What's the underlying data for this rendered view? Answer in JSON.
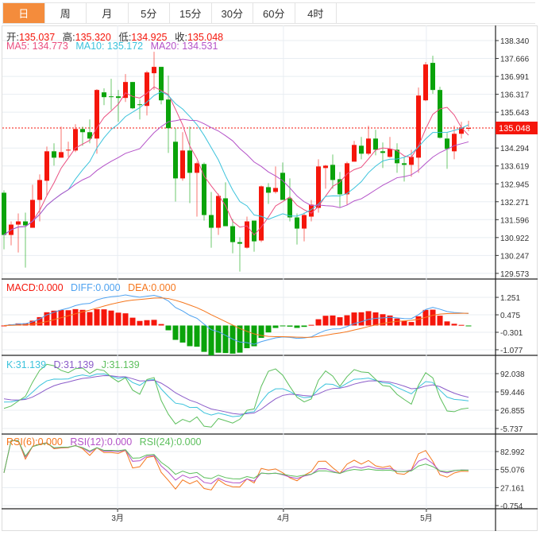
{
  "tabs": [
    "日",
    "周",
    "月",
    "5分",
    "15分",
    "30分",
    "60分",
    "4时"
  ],
  "active_tab": 0,
  "ohlc_legend": {
    "open_label": "开:",
    "open": "135.037",
    "high_label": "高:",
    "high": "135.320",
    "low_label": "低:",
    "low": "134.925",
    "close_label": "收:",
    "close": "135.048"
  },
  "ma_legend": {
    "ma5": "MA5: 134.773",
    "ma10": "MA10: 135.172",
    "ma20": "MA20: 134.531"
  },
  "macd_legend": {
    "macd": "MACD:0.000",
    "diff": "DIFF:0.000",
    "dea": "DEA:0.000"
  },
  "kdj_legend": {
    "k": "K:31.139",
    "d": "D:31.139",
    "j": "J:31.139"
  },
  "rsi_legend": {
    "rsi6": "RSI(6):0.000",
    "rsi12": "RSI(12):0.000",
    "rsi24": "RSI(24):0.000"
  },
  "colors": {
    "up": "#f5160b",
    "down": "#0aa30a",
    "ma5": "#ea4f80",
    "ma10": "#3cc3dc",
    "ma20": "#b452c8",
    "dif": "#4ea2f0",
    "dea": "#f5761c",
    "k": "#3cc3dc",
    "d": "#8b5cc9",
    "j": "#5cbf5c",
    "rsi6": "#f5761c",
    "rsi12": "#b452c8",
    "rsi24": "#5cbf5c",
    "accent": "#f48c3c"
  },
  "chart_data": {
    "type": "candlestick",
    "last_price": "135.048",
    "price_axis": {
      "ticks": [
        "138.340",
        "137.666",
        "136.991",
        "136.317",
        "135.643",
        "134.294",
        "133.619",
        "132.945",
        "132.271",
        "131.596",
        "130.922",
        "130.247",
        "129.573"
      ],
      "range": [
        129.39,
        138.91
      ]
    },
    "macd_axis": {
      "ticks": [
        "1.251",
        "0.475",
        "-0.301",
        "-1.077"
      ],
      "range": [
        -1.29,
        2.03
      ]
    },
    "kdj_axis": {
      "ticks": [
        "92.038",
        "59.446",
        "26.855",
        "-5.737"
      ],
      "range": [
        -14.2,
        123.2
      ]
    },
    "rsi_axis": {
      "ticks": [
        "82.992",
        "55.076",
        "27.161",
        "-0.754"
      ],
      "range": [
        -5.68,
        108.9
      ]
    },
    "x_labels": [
      {
        "label": "3月",
        "index": 15.9
      },
      {
        "label": "4月",
        "index": 39.1
      },
      {
        "label": "5月",
        "index": 59.1
      }
    ],
    "candles_ohlc": [
      [
        132.61,
        132.7,
        130.48,
        131.02
      ],
      [
        131.02,
        131.53,
        130.63,
        131.41
      ],
      [
        131.41,
        131.83,
        130.36,
        131.53
      ],
      [
        131.53,
        131.86,
        129.79,
        131.38
      ],
      [
        131.29,
        132.91,
        131.29,
        132.34
      ],
      [
        132.34,
        133.3,
        131.53,
        133.09
      ],
      [
        133.06,
        134.35,
        132.52,
        134.17
      ],
      [
        134.17,
        134.47,
        133.63,
        133.93
      ],
      [
        133.93,
        135.1,
        133.93,
        134.14
      ],
      [
        134.2,
        134.53,
        133.96,
        134.23
      ],
      [
        134.2,
        135.19,
        134.14,
        135.01
      ],
      [
        135.01,
        135.1,
        134.38,
        134.89
      ],
      [
        134.89,
        135.37,
        134.47,
        134.65
      ],
      [
        134.65,
        136.51,
        134.08,
        136.48
      ],
      [
        136.39,
        136.54,
        135.91,
        136.21
      ],
      [
        136.24,
        136.9,
        135.73,
        136.22
      ],
      [
        136.24,
        136.48,
        135.28,
        136.18
      ],
      [
        136.18,
        137.08,
        136.03,
        136.78
      ],
      [
        136.78,
        136.78,
        135.76,
        135.79
      ],
      [
        135.94,
        136.12,
        135.37,
        135.91
      ],
      [
        135.88,
        137.2,
        135.52,
        137.14
      ],
      [
        137.11,
        137.92,
        136.48,
        137.35
      ],
      [
        137.35,
        137.35,
        135.94,
        136.09
      ],
      [
        136.12,
        137.02,
        134.11,
        135.04
      ],
      [
        134.53,
        135.04,
        132.28,
        133.15
      ],
      [
        133.15,
        134.89,
        133.06,
        134.2
      ],
      [
        134.2,
        135.1,
        132.22,
        133.36
      ],
      [
        133.36,
        133.78,
        131.71,
        133.72
      ],
      [
        133.69,
        133.75,
        131.56,
        131.77
      ],
      [
        131.77,
        132.64,
        130.54,
        131.29
      ],
      [
        131.29,
        132.58,
        131.02,
        132.49
      ],
      [
        132.4,
        133.0,
        131.35,
        131.35
      ],
      [
        131.35,
        131.62,
        130.33,
        130.75
      ],
      [
        130.75,
        130.93,
        129.64,
        130.69
      ],
      [
        130.54,
        131.71,
        130.51,
        131.53
      ],
      [
        131.56,
        131.56,
        130.39,
        130.78
      ],
      [
        130.81,
        132.88,
        130.75,
        132.85
      ],
      [
        132.82,
        132.97,
        132.19,
        132.61
      ],
      [
        132.64,
        133.6,
        132.58,
        132.79
      ],
      [
        133.36,
        133.75,
        132.34,
        132.34
      ],
      [
        132.4,
        133.15,
        131.53,
        131.68
      ],
      [
        131.68,
        131.83,
        130.66,
        131.26
      ],
      [
        131.26,
        131.86,
        130.78,
        131.77
      ],
      [
        131.71,
        132.34,
        131.53,
        132.16
      ],
      [
        132.04,
        133.87,
        131.86,
        133.6
      ],
      [
        133.54,
        133.66,
        132.76,
        133.63
      ],
      [
        133.66,
        134.05,
        132.76,
        133.09
      ],
      [
        133.12,
        133.39,
        132.07,
        132.55
      ],
      [
        132.55,
        133.78,
        132.16,
        133.72
      ],
      [
        133.78,
        134.56,
        133.78,
        134.41
      ],
      [
        134.38,
        134.71,
        133.87,
        134.08
      ],
      [
        134.08,
        135.13,
        134.02,
        134.65
      ],
      [
        134.65,
        134.98,
        134.02,
        134.23
      ],
      [
        134.17,
        134.5,
        133.54,
        134.11
      ],
      [
        133.96,
        134.71,
        133.93,
        134.26
      ],
      [
        134.23,
        134.47,
        133.36,
        133.72
      ],
      [
        133.72,
        133.96,
        133.03,
        133.66
      ],
      [
        133.66,
        134.23,
        133.21,
        133.96
      ],
      [
        133.93,
        136.57,
        133.36,
        136.27
      ],
      [
        136.09,
        137.53,
        136.06,
        137.44
      ],
      [
        137.5,
        137.77,
        136.33,
        136.48
      ],
      [
        136.48,
        136.6,
        134.65,
        134.68
      ],
      [
        134.65,
        134.86,
        133.51,
        134.26
      ],
      [
        134.17,
        135.13,
        133.87,
        134.83
      ],
      [
        134.83,
        135.28,
        134.65,
        135.07
      ],
      [
        135.037,
        135.32,
        134.925,
        135.048
      ]
    ]
  }
}
